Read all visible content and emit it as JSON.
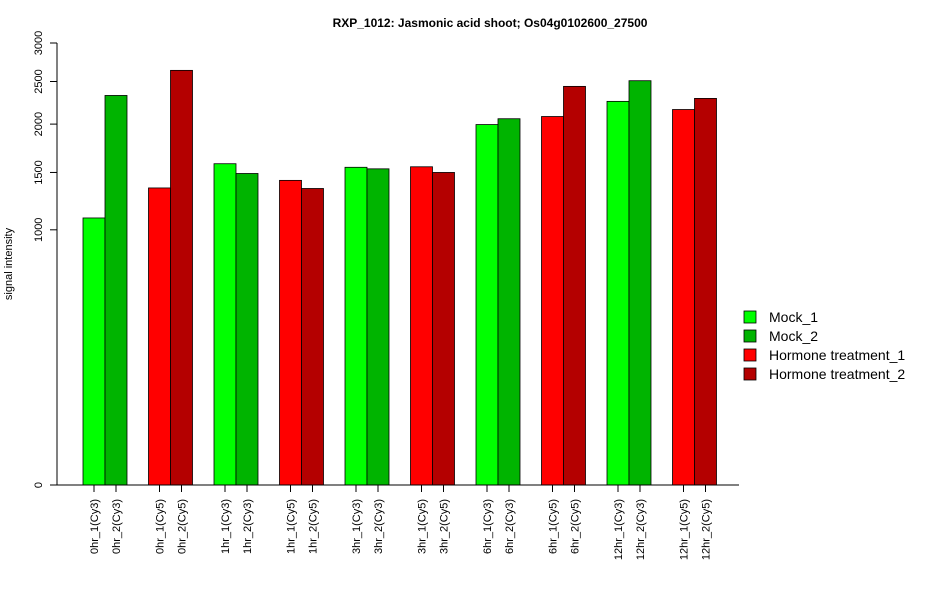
{
  "chart_data": {
    "type": "bar",
    "title": "RXP_1012: Jasmonic acid shoot; Os04g0102600_27500",
    "xlabel": "",
    "ylabel": "signal intensity",
    "y_ticks": [
      0,
      1000,
      1500,
      2000,
      2500,
      3000
    ],
    "y_tick_labels": [
      "0",
      "1000",
      "1500",
      "2000",
      "2500",
      "3000"
    ],
    "scale": "sqrt",
    "ylim": [
      0,
      3000
    ],
    "grid": false,
    "legend_position": "right",
    "series": [
      {
        "name": "Mock_1",
        "color": "#00ff00"
      },
      {
        "name": "Mock_2",
        "color": "#00b400"
      },
      {
        "name": "Hormone treatment_1",
        "color": "#ff0000"
      },
      {
        "name": "Hormone treatment_2",
        "color": "#b40000"
      }
    ],
    "bars": [
      {
        "label": "0hr_1(Cy3)",
        "value": 1095,
        "series": 0
      },
      {
        "label": "0hr_2(Cy3)",
        "value": 2330,
        "series": 1
      },
      {
        "label": "0hr_1(Cy5)",
        "value": 1355,
        "series": 2
      },
      {
        "label": "0hr_2(Cy5)",
        "value": 2640,
        "series": 3
      },
      {
        "label": "1hr_1(Cy3)",
        "value": 1585,
        "series": 0
      },
      {
        "label": "1hr_2(Cy3)",
        "value": 1490,
        "series": 1
      },
      {
        "label": "1hr_1(Cy5)",
        "value": 1425,
        "series": 2
      },
      {
        "label": "1hr_2(Cy5)",
        "value": 1350,
        "series": 3
      },
      {
        "label": "3hr_1(Cy3)",
        "value": 1550,
        "series": 0
      },
      {
        "label": "3hr_2(Cy3)",
        "value": 1535,
        "series": 1
      },
      {
        "label": "3hr_1(Cy5)",
        "value": 1555,
        "series": 2
      },
      {
        "label": "3hr_2(Cy5)",
        "value": 1500,
        "series": 3
      },
      {
        "label": "6hr_1(Cy3)",
        "value": 1995,
        "series": 0
      },
      {
        "label": "6hr_2(Cy3)",
        "value": 2060,
        "series": 1
      },
      {
        "label": "6hr_1(Cy5)",
        "value": 2085,
        "series": 2
      },
      {
        "label": "6hr_2(Cy5)",
        "value": 2440,
        "series": 3
      },
      {
        "label": "12hr_1(Cy3)",
        "value": 2260,
        "series": 0
      },
      {
        "label": "12hr_2(Cy3)",
        "value": 2510,
        "series": 1
      },
      {
        "label": "12hr_1(Cy5)",
        "value": 2165,
        "series": 2
      },
      {
        "label": "12hr_2(Cy5)",
        "value": 2295,
        "series": 3
      }
    ]
  }
}
